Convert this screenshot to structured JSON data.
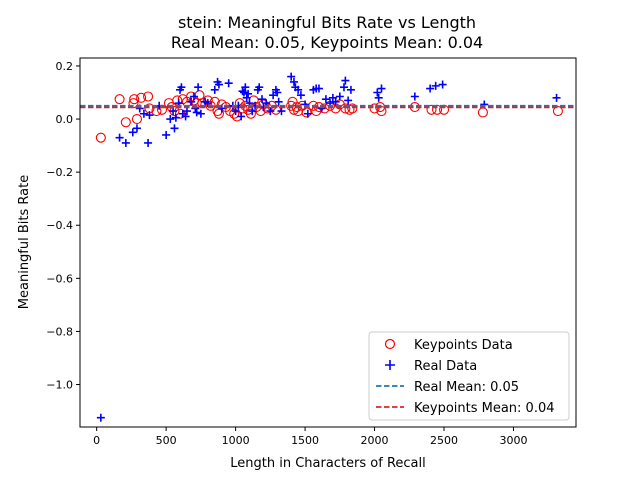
{
  "chart_data": {
    "type": "scatter",
    "title": "stein: Meaningful Bits Rate vs Length",
    "subtitle": "Real Mean: 0.05, Keypoints Mean: 0.04",
    "xlabel": "Length in Characters of Recall",
    "ylabel": "Meaningful Bits Rate",
    "xlim": [
      -120,
      3450
    ],
    "ylim": [
      -1.16,
      0.23
    ],
    "xticks": [
      0,
      500,
      1000,
      1500,
      2000,
      2500,
      3000
    ],
    "yticks": [
      0.2,
      0.0,
      -0.2,
      -0.4,
      -0.6,
      -0.8,
      -1.0
    ],
    "xtick_labels": [
      "0",
      "500",
      "1000",
      "1500",
      "2000",
      "2500",
      "3000"
    ],
    "ytick_labels": [
      "0.2",
      "0.0",
      "−0.2",
      "−0.4",
      "−0.6",
      "−0.8",
      "−1.0"
    ],
    "grid": false,
    "legend_position": "lower-right",
    "series": [
      {
        "name": "Keypoints Data",
        "marker": "circle-open",
        "color": "#ff0000",
        "points": [
          [
            30,
            -0.07
          ],
          [
            165,
            0.075
          ],
          [
            210,
            -0.012
          ],
          [
            265,
            0.06
          ],
          [
            270,
            0.075
          ],
          [
            290,
            0.0
          ],
          [
            320,
            0.08
          ],
          [
            370,
            0.085
          ],
          [
            380,
            0.04
          ],
          [
            430,
            0.03
          ],
          [
            470,
            0.035
          ],
          [
            520,
            0.06
          ],
          [
            540,
            0.045
          ],
          [
            560,
            0.03
          ],
          [
            580,
            0.07
          ],
          [
            600,
            0.02
          ],
          [
            620,
            0.075
          ],
          [
            650,
            0.065
          ],
          [
            680,
            0.085
          ],
          [
            700,
            0.07
          ],
          [
            720,
            0.06
          ],
          [
            740,
            0.09
          ],
          [
            760,
            0.06
          ],
          [
            800,
            0.07
          ],
          [
            820,
            0.05
          ],
          [
            850,
            0.065
          ],
          [
            870,
            0.03
          ],
          [
            880,
            0.02
          ],
          [
            900,
            0.055
          ],
          [
            930,
            0.045
          ],
          [
            960,
            0.03
          ],
          [
            990,
            0.02
          ],
          [
            1010,
            0.01
          ],
          [
            1030,
            0.06
          ],
          [
            1050,
            0.04
          ],
          [
            1070,
            0.05
          ],
          [
            1090,
            0.035
          ],
          [
            1110,
            0.02
          ],
          [
            1130,
            0.07
          ],
          [
            1150,
            0.045
          ],
          [
            1180,
            0.03
          ],
          [
            1200,
            0.055
          ],
          [
            1230,
            0.04
          ],
          [
            1260,
            0.05
          ],
          [
            1290,
            0.035
          ],
          [
            1400,
            0.05
          ],
          [
            1410,
            0.065
          ],
          [
            1420,
            0.035
          ],
          [
            1440,
            0.045
          ],
          [
            1450,
            0.03
          ],
          [
            1480,
            0.05
          ],
          [
            1510,
            0.025
          ],
          [
            1560,
            0.05
          ],
          [
            1580,
            0.03
          ],
          [
            1600,
            0.045
          ],
          [
            1640,
            0.04
          ],
          [
            1680,
            0.05
          ],
          [
            1720,
            0.04
          ],
          [
            1750,
            0.055
          ],
          [
            1790,
            0.04
          ],
          [
            1820,
            0.035
          ],
          [
            1840,
            0.04
          ],
          [
            2000,
            0.04
          ],
          [
            2040,
            0.045
          ],
          [
            2050,
            0.03
          ],
          [
            2290,
            0.045
          ],
          [
            2410,
            0.035
          ],
          [
            2450,
            0.035
          ],
          [
            2500,
            0.035
          ],
          [
            2780,
            0.025
          ],
          [
            3320,
            0.03
          ]
        ]
      },
      {
        "name": "Real Data",
        "marker": "plus",
        "color": "#0000ff",
        "points": [
          [
            30,
            -1.125
          ],
          [
            165,
            -0.07
          ],
          [
            210,
            -0.09
          ],
          [
            260,
            -0.05
          ],
          [
            290,
            -0.035
          ],
          [
            310,
            0.04
          ],
          [
            340,
            0.02
          ],
          [
            370,
            -0.09
          ],
          [
            380,
            0.015
          ],
          [
            450,
            0.05
          ],
          [
            500,
            -0.06
          ],
          [
            530,
            0.0
          ],
          [
            550,
            0.03
          ],
          [
            560,
            -0.035
          ],
          [
            570,
            0.005
          ],
          [
            590,
            0.06
          ],
          [
            600,
            0.11
          ],
          [
            610,
            0.12
          ],
          [
            620,
            0.02
          ],
          [
            640,
            0.01
          ],
          [
            650,
            0.03
          ],
          [
            680,
            0.065
          ],
          [
            700,
            0.085
          ],
          [
            710,
            0.04
          ],
          [
            720,
            0.025
          ],
          [
            730,
            0.12
          ],
          [
            750,
            0.02
          ],
          [
            780,
            0.065
          ],
          [
            800,
            0.06
          ],
          [
            850,
            0.11
          ],
          [
            870,
            0.14
          ],
          [
            880,
            0.13
          ],
          [
            900,
            0.04
          ],
          [
            950,
            0.135
          ],
          [
            980,
            0.05
          ],
          [
            1000,
            0.03
          ],
          [
            1020,
            0.05
          ],
          [
            1040,
            0.01
          ],
          [
            1050,
            0.105
          ],
          [
            1060,
            0.1
          ],
          [
            1070,
            0.12
          ],
          [
            1080,
            0.08
          ],
          [
            1090,
            0.095
          ],
          [
            1100,
            0.06
          ],
          [
            1120,
            0.03
          ],
          [
            1140,
            0.05
          ],
          [
            1160,
            0.11
          ],
          [
            1170,
            0.12
          ],
          [
            1190,
            0.075
          ],
          [
            1200,
            0.045
          ],
          [
            1220,
            0.06
          ],
          [
            1250,
            0.03
          ],
          [
            1270,
            0.09
          ],
          [
            1290,
            0.11
          ],
          [
            1300,
            0.1
          ],
          [
            1310,
            0.065
          ],
          [
            1330,
            0.03
          ],
          [
            1400,
            0.16
          ],
          [
            1420,
            0.14
          ],
          [
            1430,
            0.12
          ],
          [
            1450,
            0.11
          ],
          [
            1470,
            0.09
          ],
          [
            1500,
            0.055
          ],
          [
            1520,
            0.02
          ],
          [
            1560,
            0.11
          ],
          [
            1580,
            0.115
          ],
          [
            1600,
            0.115
          ],
          [
            1620,
            0.04
          ],
          [
            1650,
            0.075
          ],
          [
            1680,
            0.06
          ],
          [
            1700,
            0.08
          ],
          [
            1720,
            0.065
          ],
          [
            1750,
            0.085
          ],
          [
            1780,
            0.12
          ],
          [
            1790,
            0.145
          ],
          [
            1810,
            0.07
          ],
          [
            1830,
            0.11
          ],
          [
            2020,
            0.1
          ],
          [
            2030,
            0.08
          ],
          [
            2050,
            0.115
          ],
          [
            2290,
            0.085
          ],
          [
            2400,
            0.115
          ],
          [
            2440,
            0.125
          ],
          [
            2490,
            0.13
          ],
          [
            2790,
            0.055
          ],
          [
            3310,
            0.08
          ]
        ]
      }
    ],
    "mean_lines": [
      {
        "name": "Real Mean: 0.05",
        "value": 0.05,
        "color": "#1f77b4",
        "style": "dashed"
      },
      {
        "name": "Keypoints Mean: 0.04",
        "value": 0.044,
        "color": "#d62728",
        "style": "dashed"
      }
    ]
  }
}
